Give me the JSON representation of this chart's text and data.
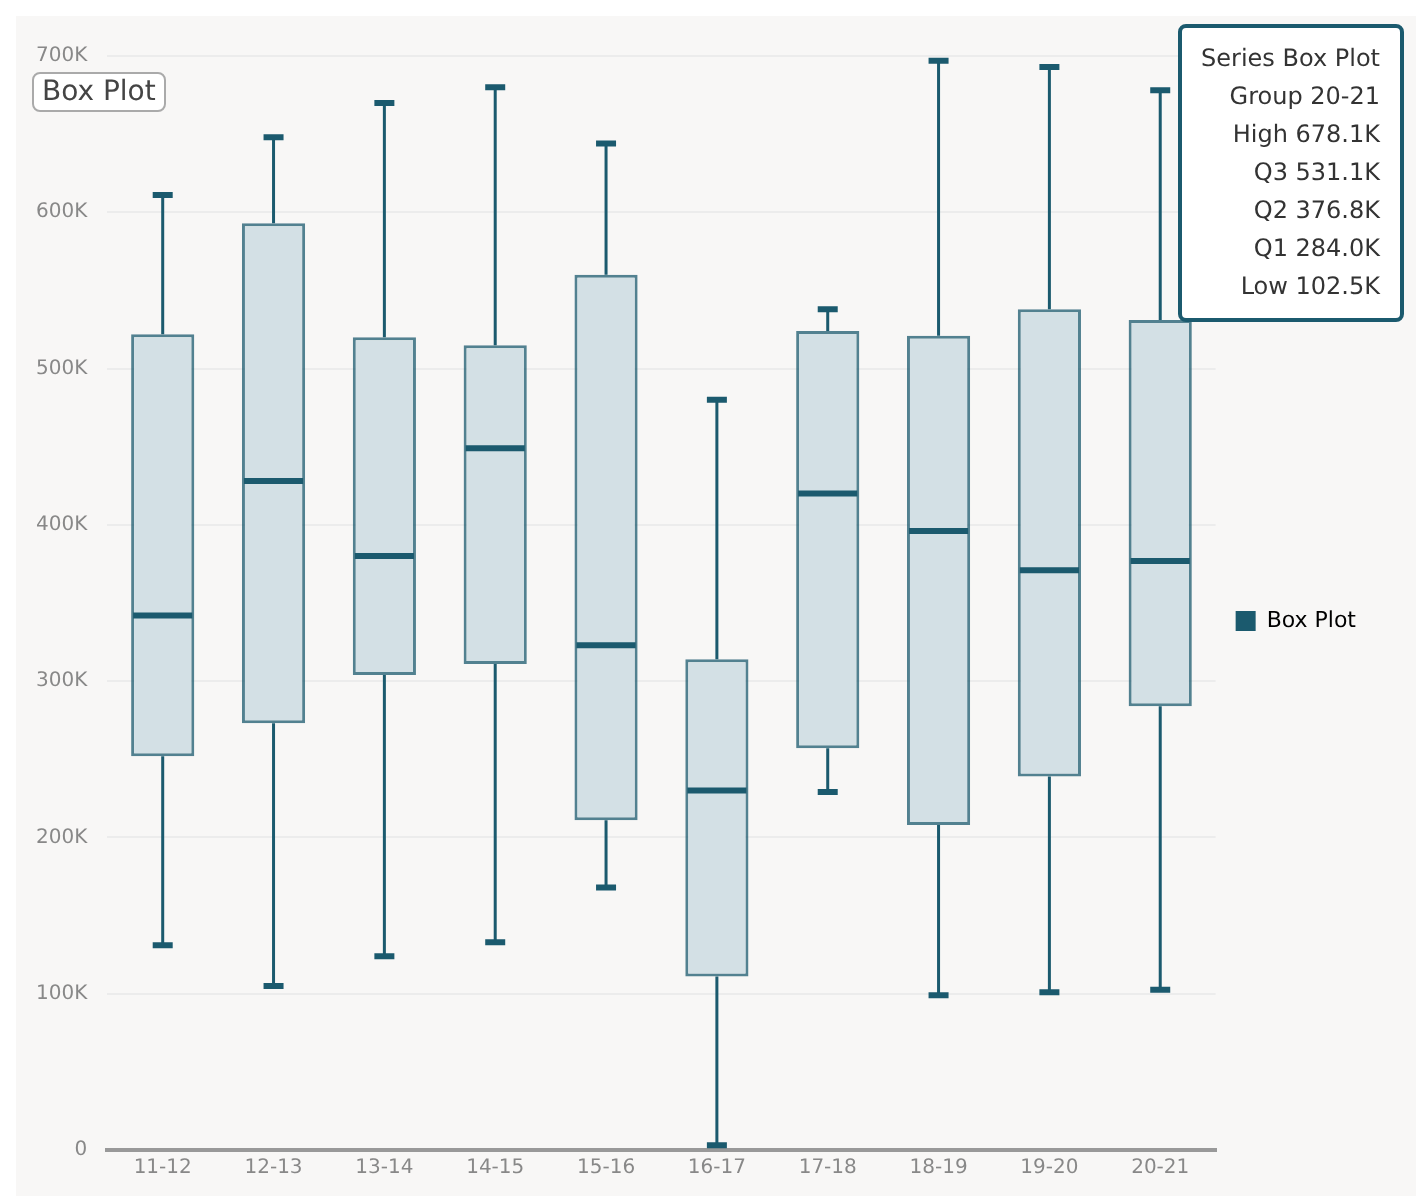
{
  "chart_data": {
    "type": "box",
    "title": "Box Plot",
    "categories": [
      "11-12",
      "12-13",
      "13-14",
      "14-15",
      "15-16",
      "16-17",
      "17-18",
      "18-19",
      "19-20",
      "20-21"
    ],
    "series": [
      {
        "name": "Box Plot",
        "color": "#1b5a6e",
        "boxes": [
          {
            "low": 131000,
            "q1": 252000,
            "median": 342000,
            "q3": 522000,
            "high": 611000
          },
          {
            "low": 105000,
            "q1": 273000,
            "median": 428000,
            "q3": 593000,
            "high": 648000
          },
          {
            "low": 124000,
            "q1": 304000,
            "median": 380000,
            "q3": 520000,
            "high": 670000
          },
          {
            "low": 133000,
            "q1": 311000,
            "median": 449000,
            "q3": 515000,
            "high": 680000
          },
          {
            "low": 168000,
            "q1": 211000,
            "median": 323000,
            "q3": 560000,
            "high": 644000
          },
          {
            "low": 3000,
            "q1": 111000,
            "median": 230000,
            "q3": 314000,
            "high": 480000
          },
          {
            "low": 229000,
            "q1": 257000,
            "median": 420000,
            "q3": 524000,
            "high": 538000
          },
          {
            "low": 99000,
            "q1": 208000,
            "median": 396000,
            "q3": 521000,
            "high": 697000
          },
          {
            "low": 101000,
            "q1": 239000,
            "median": 371000,
            "q3": 538000,
            "high": 693000
          },
          {
            "low": 102500,
            "q1": 284000,
            "median": 376800,
            "q3": 531100,
            "high": 678100
          }
        ]
      }
    ],
    "ylim": [
      0,
      700000
    ],
    "yticks": [
      0,
      {
        "value": 100000,
        "label": "100K"
      },
      {
        "value": 200000,
        "label": "200K"
      },
      {
        "value": 300000,
        "label": "300K"
      },
      {
        "value": 400000,
        "label": "400K"
      },
      {
        "value": 500000,
        "label": "500K"
      },
      {
        "value": 600000,
        "label": "600K"
      },
      {
        "value": 700000,
        "label": "700K"
      }
    ],
    "grid": "y",
    "legend": "right",
    "annotations": [
      "Series Box Plot",
      "Group 20-21",
      "High 678.1K",
      "Q3 531.1K",
      "Q2 376.8K",
      "Q1 284.0K",
      "Low 102.5K"
    ]
  }
}
